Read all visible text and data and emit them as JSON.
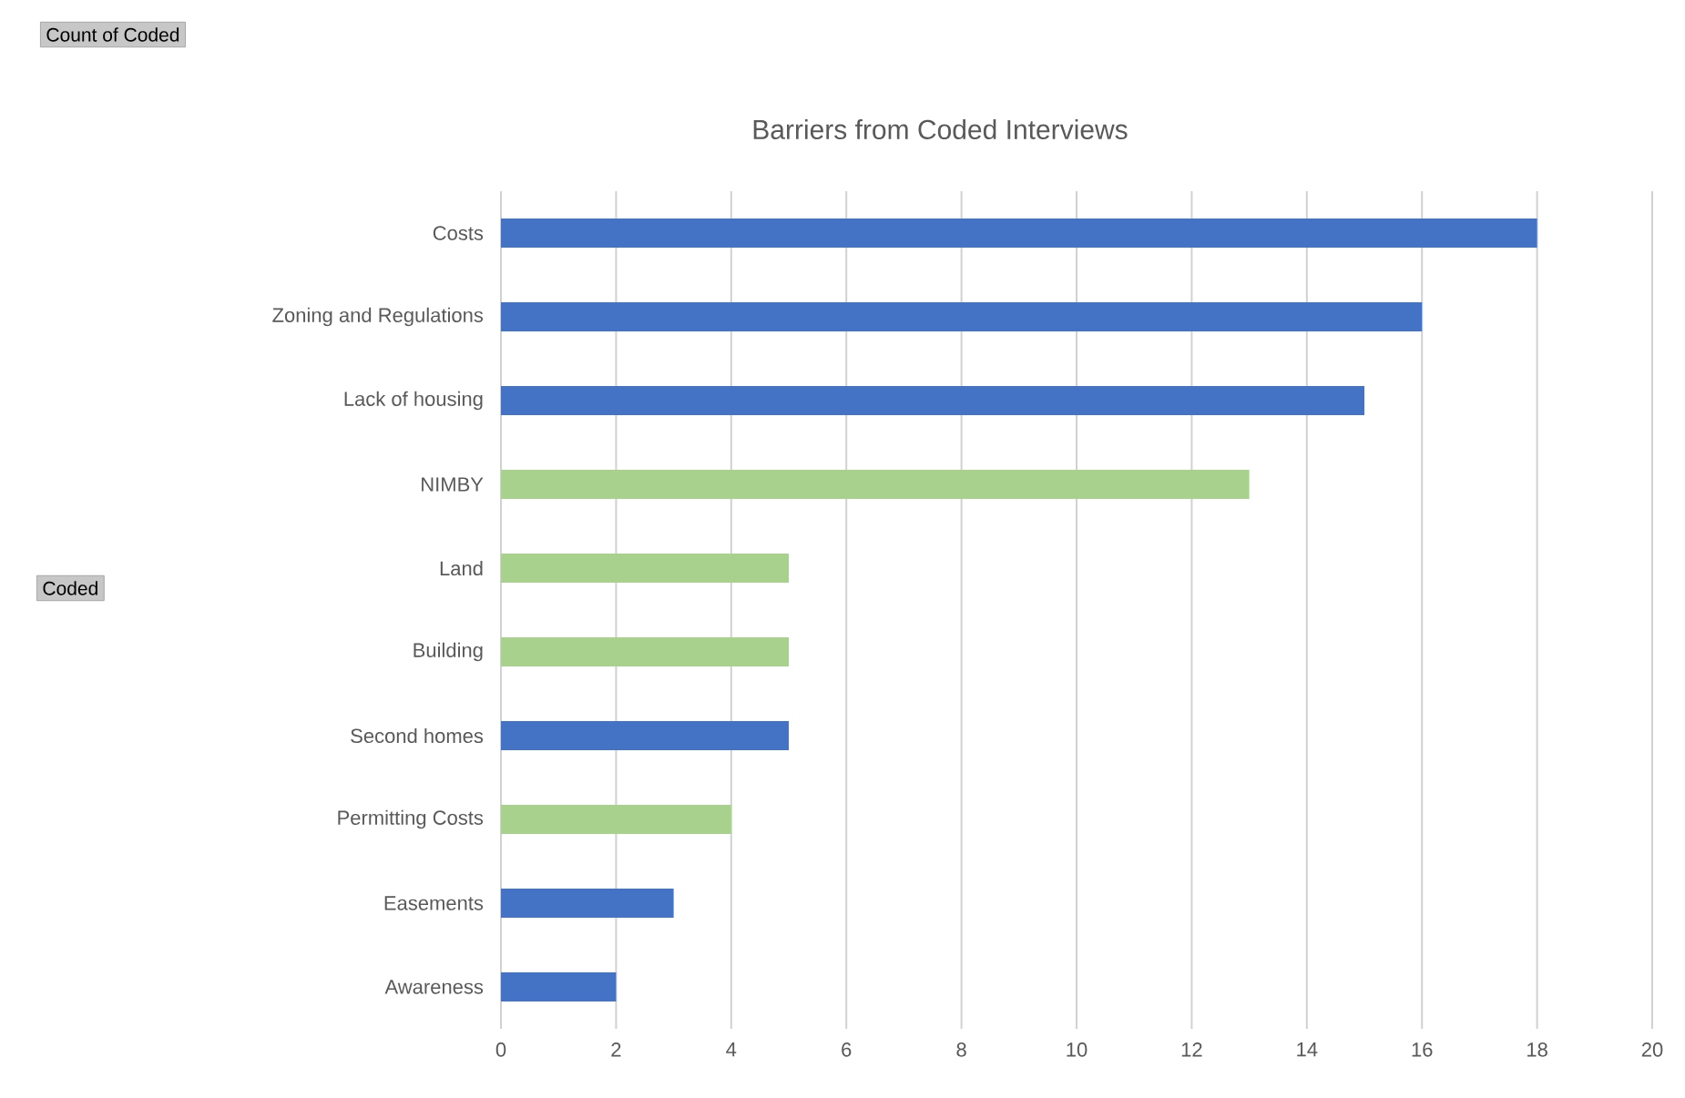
{
  "chart_data": {
    "type": "bar",
    "orientation": "horizontal",
    "title": "Barriers from Coded Interviews",
    "categories": [
      "Costs",
      "Zoning and Regulations",
      "Lack of housing",
      "NIMBY",
      "Land",
      "Building",
      "Second homes",
      "Permitting Costs",
      "Easements",
      "Awareness"
    ],
    "values": [
      18,
      16,
      15,
      13,
      5,
      5,
      5,
      4,
      3,
      2
    ],
    "colors": [
      "#4472c4",
      "#4472c4",
      "#4472c4",
      "#a9d18e",
      "#a9d18e",
      "#a9d18e",
      "#4472c4",
      "#a9d18e",
      "#4472c4",
      "#4472c4"
    ],
    "xlim": [
      0,
      20
    ],
    "xticks": [
      0,
      2,
      4,
      6,
      8,
      10,
      12,
      14,
      16,
      18,
      20
    ],
    "grid": "x",
    "annotations": [
      "Count of Coded",
      "Coded"
    ]
  }
}
